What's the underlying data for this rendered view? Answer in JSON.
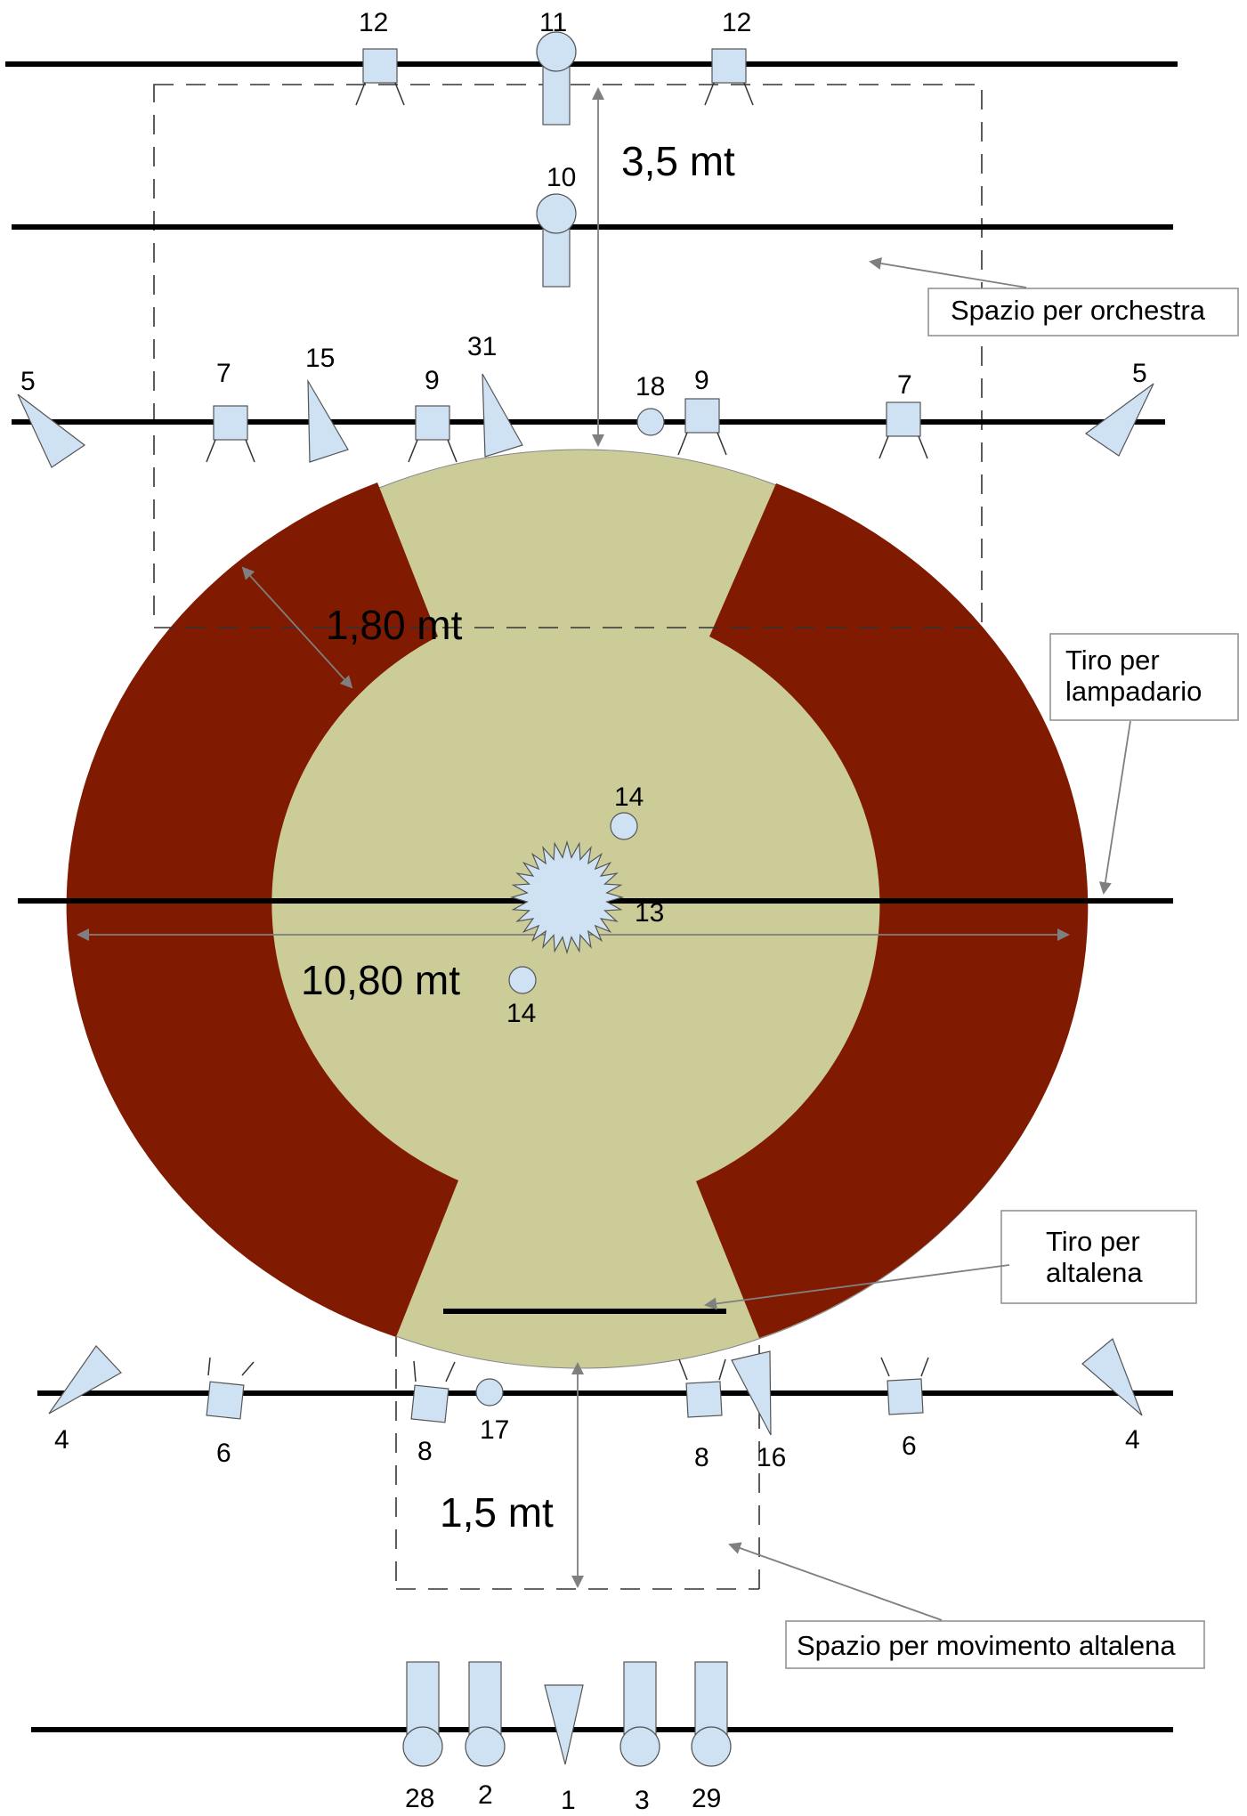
{
  "colors": {
    "stage_floor": "#cccc99",
    "stage_ring": "#801a00",
    "fixture_fill": "#cfe2f3",
    "batten": "#000000",
    "arrow": "#7f7f7f"
  },
  "dimensions": {
    "orchestra_depth": "3,5 mt",
    "ring_width": "1,80 mt",
    "diameter": "10,80 mt",
    "swing_depth": "1,5 mt"
  },
  "callouts": {
    "orchestra": "Spazio per orchestra",
    "chandelier_line1": "Tiro per",
    "chandelier_line2": "lampadario",
    "swing_line1": "Tiro per",
    "swing_line2": "altalena",
    "swing_space": "Spazio per movimento altalena"
  },
  "fixture_labels": {
    "top_12_left": "12",
    "top_11": "11",
    "top_12_right": "12",
    "b2_10": "10",
    "b3_5_left": "5",
    "b3_7_left": "7",
    "b3_15": "15",
    "b3_9_left": "9",
    "b3_31": "31",
    "b3_18": "18",
    "b3_9_right": "9",
    "b3_7_right": "7",
    "b3_5_right": "5",
    "center_14_top": "14",
    "center_13": "13",
    "center_14_bottom": "14",
    "b5_4_left": "4",
    "b5_6_left": "6",
    "b5_8_left": "8",
    "b5_17": "17",
    "b5_8_right": "8",
    "b5_16": "16",
    "b5_6_right": "6",
    "b5_4_right": "4",
    "b6_28": "28",
    "b6_2": "2",
    "b6_1": "1",
    "b6_3": "3",
    "b6_29": "29"
  }
}
